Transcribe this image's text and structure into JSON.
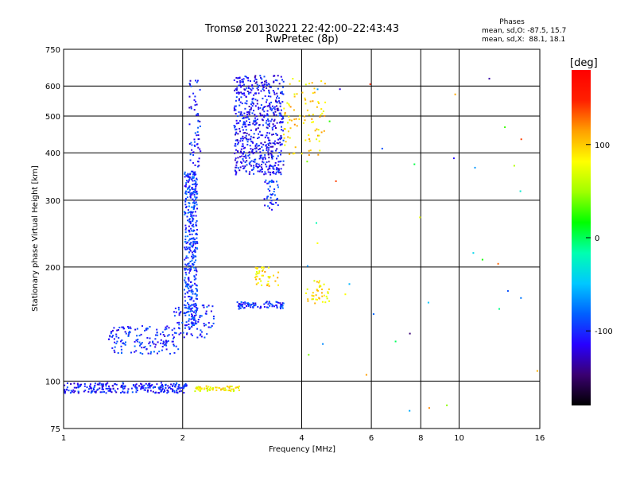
{
  "chart_data": {
    "type": "scatter",
    "title": "Tromsø 20130221 22:42:00–22:43:43",
    "subtitle": "RwPretec (8p)",
    "xlabel": "Frequency [MHz]",
    "ylabel": "Stationary phase Virtual Height [km]",
    "x_scale": "log",
    "y_scale": "log",
    "xlim": [
      1,
      16
    ],
    "ylim": [
      75,
      750
    ],
    "x_ticks": [
      1,
      2,
      4,
      6,
      8,
      10,
      16
    ],
    "x_tick_labels": [
      "1",
      "2",
      "4",
      "6",
      "8",
      "10",
      "16"
    ],
    "y_ticks": [
      75,
      100,
      200,
      300,
      400,
      500,
      600,
      750
    ],
    "y_tick_labels": [
      "75",
      "100",
      "200",
      "300",
      "400",
      "500",
      "600",
      "750"
    ],
    "grid": true,
    "phases_stats": {
      "heading": "Phases",
      "line_o": "mean, sd,O: -87.5, 15.7",
      "line_x": "mean, sd,X:  88.1, 18.1"
    },
    "colorbar": {
      "label": "[deg]",
      "range": [
        -180,
        180
      ],
      "ticks": [
        100,
        0,
        -100
      ],
      "tick_labels": [
        "100",
        "0",
        "-100"
      ],
      "colors": [
        "#000000",
        "#3a0070",
        "#2800ff",
        "#0060ff",
        "#00c8ff",
        "#00ffb0",
        "#00ff00",
        "#a0ff00",
        "#ffff00",
        "#ffa000",
        "#ff2000",
        "#ff0000"
      ]
    },
    "clusters": [
      {
        "name": "E-layer trace",
        "x": [
          1.0,
          2.05
        ],
        "y": [
          93,
          99
        ],
        "phase": -105,
        "n": 260
      },
      {
        "name": "E-layer X trace",
        "x": [
          2.15,
          2.8
        ],
        "y": [
          94,
          97
        ],
        "phase": 85,
        "n": 60
      },
      {
        "name": "Es low trace",
        "x": [
          1.3,
          1.95
        ],
        "y": [
          118,
          140
        ],
        "phase": -100,
        "n": 150
      },
      {
        "name": "Es rising trace",
        "x": [
          1.9,
          2.4
        ],
        "y": [
          130,
          160
        ],
        "phase": -100,
        "n": 80
      },
      {
        "name": "F1 vertical trace",
        "x": [
          2.02,
          2.18
        ],
        "y": [
          140,
          360
        ],
        "phase": -95,
        "n": 420
      },
      {
        "name": "F1 upper spread",
        "x": [
          2.08,
          2.22
        ],
        "y": [
          360,
          640
        ],
        "phase": -105,
        "n": 60
      },
      {
        "name": "F2 O-trace",
        "x": [
          2.7,
          3.6
        ],
        "y": [
          350,
          640
        ],
        "phase": -110,
        "n": 620
      },
      {
        "name": "F2 X-trace",
        "x": [
          3.6,
          4.6
        ],
        "y": [
          390,
          640
        ],
        "phase": 95,
        "n": 90
      },
      {
        "name": "mid-height trace",
        "x": [
          2.75,
          3.6
        ],
        "y": [
          155,
          162
        ],
        "phase": -100,
        "n": 80
      },
      {
        "name": "X mid-height trace",
        "x": [
          3.05,
          3.5
        ],
        "y": [
          178,
          200
        ],
        "phase": 95,
        "n": 40
      },
      {
        "name": "X trace near 4-5 MHz",
        "x": [
          4.1,
          4.7
        ],
        "y": [
          160,
          185
        ],
        "phase": 90,
        "n": 40
      },
      {
        "name": "vertical column at 3.2 MHz",
        "x": [
          3.2,
          3.5
        ],
        "y": [
          280,
          340
        ],
        "phase": -100,
        "n": 40
      },
      {
        "name": "scattered high-frequency echoes",
        "x": [
          4.0,
          16.0
        ],
        "y": [
          80,
          640
        ],
        "phase": 0,
        "n": 40
      }
    ]
  }
}
